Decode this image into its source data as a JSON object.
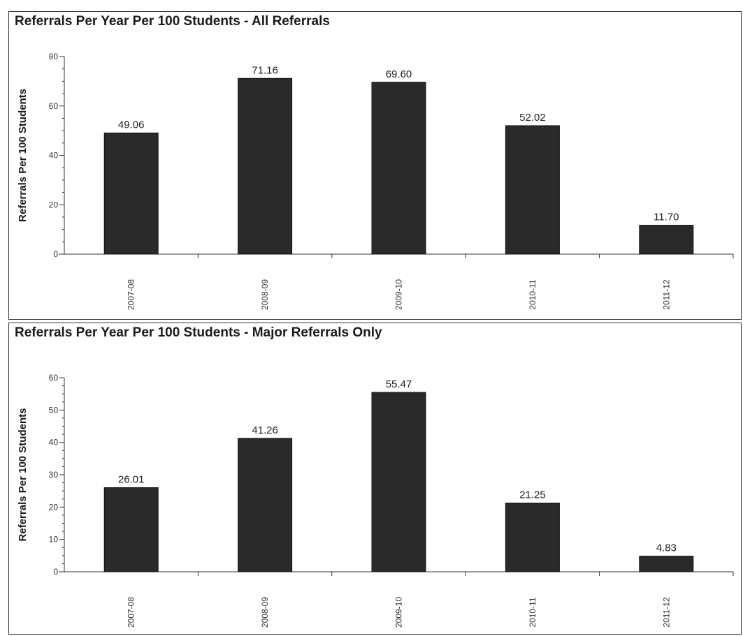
{
  "chart_data": [
    {
      "type": "bar",
      "title": "Referrals Per Year Per 100 Students - All Referrals",
      "ylabel": "Referrals Per 100 Students",
      "xlabel": "",
      "categories": [
        "2007-08",
        "2008-09",
        "2009-10",
        "2010-11",
        "2011-12"
      ],
      "values": [
        49.06,
        71.16,
        69.6,
        52.02,
        11.7
      ],
      "value_labels": [
        "49.06",
        "71.16",
        "69.60",
        "52.02",
        "11.70"
      ],
      "ylim": [
        0,
        80
      ],
      "yticks": [
        0,
        20,
        40,
        60,
        80
      ],
      "ytick_labels": [
        "0",
        "20",
        "40",
        "60",
        "80"
      ],
      "grid": false,
      "bar_color": "#2a2a2a"
    },
    {
      "type": "bar",
      "title": "Referrals Per Year Per 100 Students - Major Referrals Only",
      "ylabel": "Referrals Per 100 Students",
      "xlabel": "",
      "categories": [
        "2007-08",
        "2008-09",
        "2009-10",
        "2010-11",
        "2011-12"
      ],
      "values": [
        26.01,
        41.26,
        55.47,
        21.25,
        4.83
      ],
      "value_labels": [
        "26.01",
        "41.26",
        "55.47",
        "21.25",
        "4.83"
      ],
      "ylim": [
        0,
        60
      ],
      "yticks": [
        0,
        10,
        20,
        30,
        40,
        50,
        60
      ],
      "ytick_labels": [
        "0",
        "10",
        "20",
        "30",
        "40",
        "50",
        "60"
      ],
      "grid": false,
      "bar_color": "#2a2a2a"
    }
  ]
}
